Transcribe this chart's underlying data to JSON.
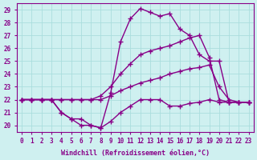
{
  "xlabel": "Windchill (Refroidissement éolien,°C)",
  "ylabel": "",
  "xlim": [
    -0.5,
    23.5
  ],
  "ylim": [
    19.5,
    29.5
  ],
  "yticks": [
    20,
    21,
    22,
    23,
    24,
    25,
    26,
    27,
    28,
    29
  ],
  "xticks": [
    0,
    1,
    2,
    3,
    4,
    5,
    6,
    7,
    8,
    9,
    10,
    11,
    12,
    13,
    14,
    15,
    16,
    17,
    18,
    19,
    20,
    21,
    22,
    23
  ],
  "bg_color": "#cff0f0",
  "grid_color": "#aadddd",
  "line_color": "#880088",
  "lines": [
    {
      "x": [
        0,
        1,
        2,
        3,
        4,
        5,
        6,
        7,
        8,
        9,
        10,
        11,
        12,
        13,
        14,
        15,
        16,
        17,
        18,
        19,
        20,
        21,
        22,
        23
      ],
      "y": [
        22,
        22,
        22,
        22,
        21,
        20.5,
        20,
        20,
        19.8,
        20.3,
        21,
        21.5,
        22,
        22,
        22,
        21.5,
        21.5,
        21.7,
        21.8,
        22,
        21.8,
        21.8,
        21.8,
        21.8
      ]
    },
    {
      "x": [
        0,
        1,
        2,
        3,
        4,
        5,
        6,
        7,
        8,
        9,
        10,
        11,
        12,
        13,
        14,
        15,
        16,
        17,
        18,
        19,
        20,
        21,
        22,
        23
      ],
      "y": [
        22,
        22,
        22,
        22,
        22,
        22,
        22,
        22,
        22,
        22.3,
        22.7,
        23,
        23.3,
        23.5,
        23.7,
        24,
        24.2,
        24.4,
        24.5,
        24.7,
        23,
        22,
        21.8,
        21.8
      ]
    },
    {
      "x": [
        0,
        1,
        2,
        3,
        4,
        5,
        6,
        7,
        8,
        9,
        10,
        11,
        12,
        13,
        14,
        15,
        16,
        17,
        18,
        19,
        20,
        21,
        22,
        23
      ],
      "y": [
        22,
        22,
        22,
        22,
        22,
        22,
        22,
        22,
        22.3,
        23,
        24,
        24.8,
        25.5,
        25.8,
        26,
        26.2,
        26.5,
        26.8,
        27,
        25.3,
        22,
        21.8,
        21.8,
        21.8
      ]
    },
    {
      "x": [
        0,
        1,
        2,
        3,
        4,
        5,
        6,
        7,
        8,
        9,
        10,
        11,
        12,
        13,
        14,
        15,
        16,
        17,
        18,
        19,
        20,
        21,
        22,
        23
      ],
      "y": [
        22,
        22,
        22,
        22,
        21,
        20.5,
        20.5,
        20,
        19.8,
        22.5,
        26.5,
        28.3,
        29.1,
        28.8,
        28.5,
        28.7,
        27.5,
        27,
        25.5,
        25.0,
        25.0,
        21.8,
        21.8,
        21.8
      ]
    }
  ],
  "marker": "+",
  "markersize": 4,
  "linewidth": 1.0,
  "tick_fontsize": 5.5,
  "label_fontsize": 6,
  "title_fontsize": 6.5
}
